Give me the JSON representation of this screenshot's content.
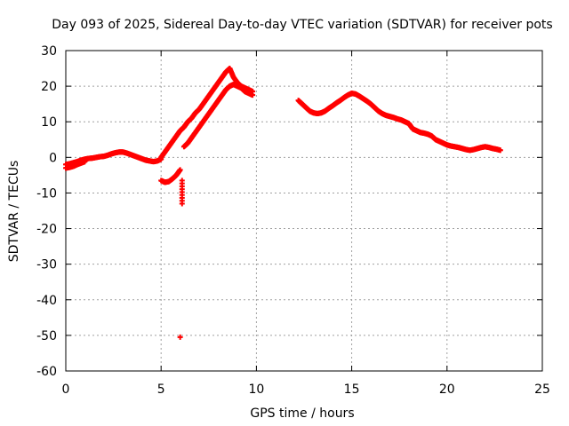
{
  "chart_data": {
    "type": "scatter",
    "title": "Day 093 of 2025, Sidereal Day-to-day VTEC variation (SDTVAR) for receiver pots",
    "xlabel": "GPS time / hours",
    "ylabel": "SDTVAR / TECUs",
    "xlim": [
      0,
      25
    ],
    "ylim": [
      -60,
      30
    ],
    "xticks": [
      0,
      5,
      10,
      15,
      20,
      25
    ],
    "yticks": [
      -60,
      -50,
      -40,
      -30,
      -20,
      -10,
      0,
      10,
      20,
      30
    ],
    "grid": true,
    "marker": "+",
    "color": "#ff0000",
    "series": [
      {
        "name": "pots",
        "segments": [
          {
            "x": [
              0.0,
              0.2,
              0.4,
              0.6,
              0.8,
              1.0,
              1.2,
              1.4,
              1.6,
              1.8,
              2.0,
              2.2,
              2.4,
              2.6,
              2.8,
              3.0,
              3.2,
              3.4,
              3.6,
              3.8,
              4.0,
              4.2,
              4.4,
              4.6,
              4.8,
              5.0
            ],
            "y": [
              -2.0,
              -1.8,
              -1.5,
              -1.2,
              -0.8,
              -0.5,
              -0.3,
              -0.2,
              0.0,
              0.2,
              0.3,
              0.6,
              1.0,
              1.3,
              1.5,
              1.5,
              1.2,
              0.8,
              0.4,
              0.0,
              -0.4,
              -0.8,
              -1.0,
              -1.2,
              -1.0,
              -0.5
            ]
          },
          {
            "x": [
              0.0,
              0.2,
              0.4,
              0.6,
              0.8,
              1.0
            ],
            "y": [
              -3.0,
              -2.8,
              -2.5,
              -2.0,
              -1.6,
              -1.2
            ]
          },
          {
            "x": [
              5.0,
              5.2,
              5.4,
              5.6,
              5.8,
              6.0,
              6.2,
              6.4,
              6.6,
              6.8,
              7.0,
              7.2,
              7.4,
              7.6,
              7.8,
              8.0,
              8.2,
              8.4,
              8.6,
              8.8,
              9.0,
              9.2,
              9.4,
              9.6,
              9.8
            ],
            "y": [
              0.0,
              1.5,
              3.0,
              4.5,
              6.0,
              7.5,
              8.5,
              10.0,
              11.0,
              12.5,
              13.5,
              15.0,
              16.5,
              18.0,
              19.5,
              21.0,
              22.5,
              24.0,
              25.0,
              22.5,
              21.0,
              20.0,
              19.5,
              19.0,
              18.5
            ]
          },
          {
            "x": [
              6.2,
              6.4,
              6.6,
              6.8,
              7.0,
              7.2,
              7.4,
              7.6,
              7.8,
              8.0,
              8.2,
              8.4,
              8.6,
              8.8,
              9.0,
              9.2,
              9.4,
              9.6,
              9.8
            ],
            "y": [
              3.0,
              4.0,
              5.5,
              7.0,
              8.5,
              10.0,
              11.5,
              13.0,
              14.5,
              16.0,
              17.5,
              19.0,
              20.0,
              20.5,
              20.0,
              19.5,
              18.5,
              18.0,
              17.5
            ]
          },
          {
            "x": [
              5.0,
              5.2,
              5.4,
              5.6,
              5.8,
              6.0
            ],
            "y": [
              -6.5,
              -7.0,
              -6.8,
              -6.0,
              -5.0,
              -3.5
            ]
          },
          {
            "x": [
              6.1,
              6.1
            ],
            "y": [
              -6.5,
              -13.0
            ]
          },
          {
            "x": [
              6.0
            ],
            "y": [
              -50.5
            ]
          },
          {
            "x": [
              12.2,
              12.4,
              12.6,
              12.8,
              13.0,
              13.2,
              13.4,
              13.6,
              13.8,
              14.0,
              14.2,
              14.4,
              14.6,
              14.8,
              15.0,
              15.2,
              15.4,
              15.6,
              15.8,
              16.0,
              16.2,
              16.4,
              16.6,
              16.8,
              17.0,
              17.2,
              17.4,
              17.6,
              17.8,
              18.0,
              18.2,
              18.4,
              18.6,
              18.8,
              19.0,
              19.2,
              19.4,
              19.6,
              19.8,
              20.0,
              20.2,
              20.4,
              20.6,
              20.8,
              21.0,
              21.2,
              21.4,
              21.6,
              21.8,
              22.0,
              22.2,
              22.4,
              22.6,
              22.8
            ],
            "y": [
              16.0,
              15.0,
              14.0,
              13.0,
              12.5,
              12.3,
              12.5,
              13.0,
              13.8,
              14.5,
              15.3,
              16.0,
              16.8,
              17.5,
              18.0,
              17.8,
              17.2,
              16.5,
              15.8,
              15.0,
              14.0,
              13.0,
              12.3,
              11.8,
              11.5,
              11.2,
              10.8,
              10.5,
              10.0,
              9.5,
              8.0,
              7.5,
              7.0,
              6.8,
              6.5,
              6.0,
              5.0,
              4.5,
              4.0,
              3.5,
              3.2,
              3.0,
              2.8,
              2.5,
              2.2,
              2.0,
              2.2,
              2.5,
              2.8,
              3.0,
              2.8,
              2.5,
              2.3,
              2.0
            ]
          }
        ]
      }
    ]
  }
}
